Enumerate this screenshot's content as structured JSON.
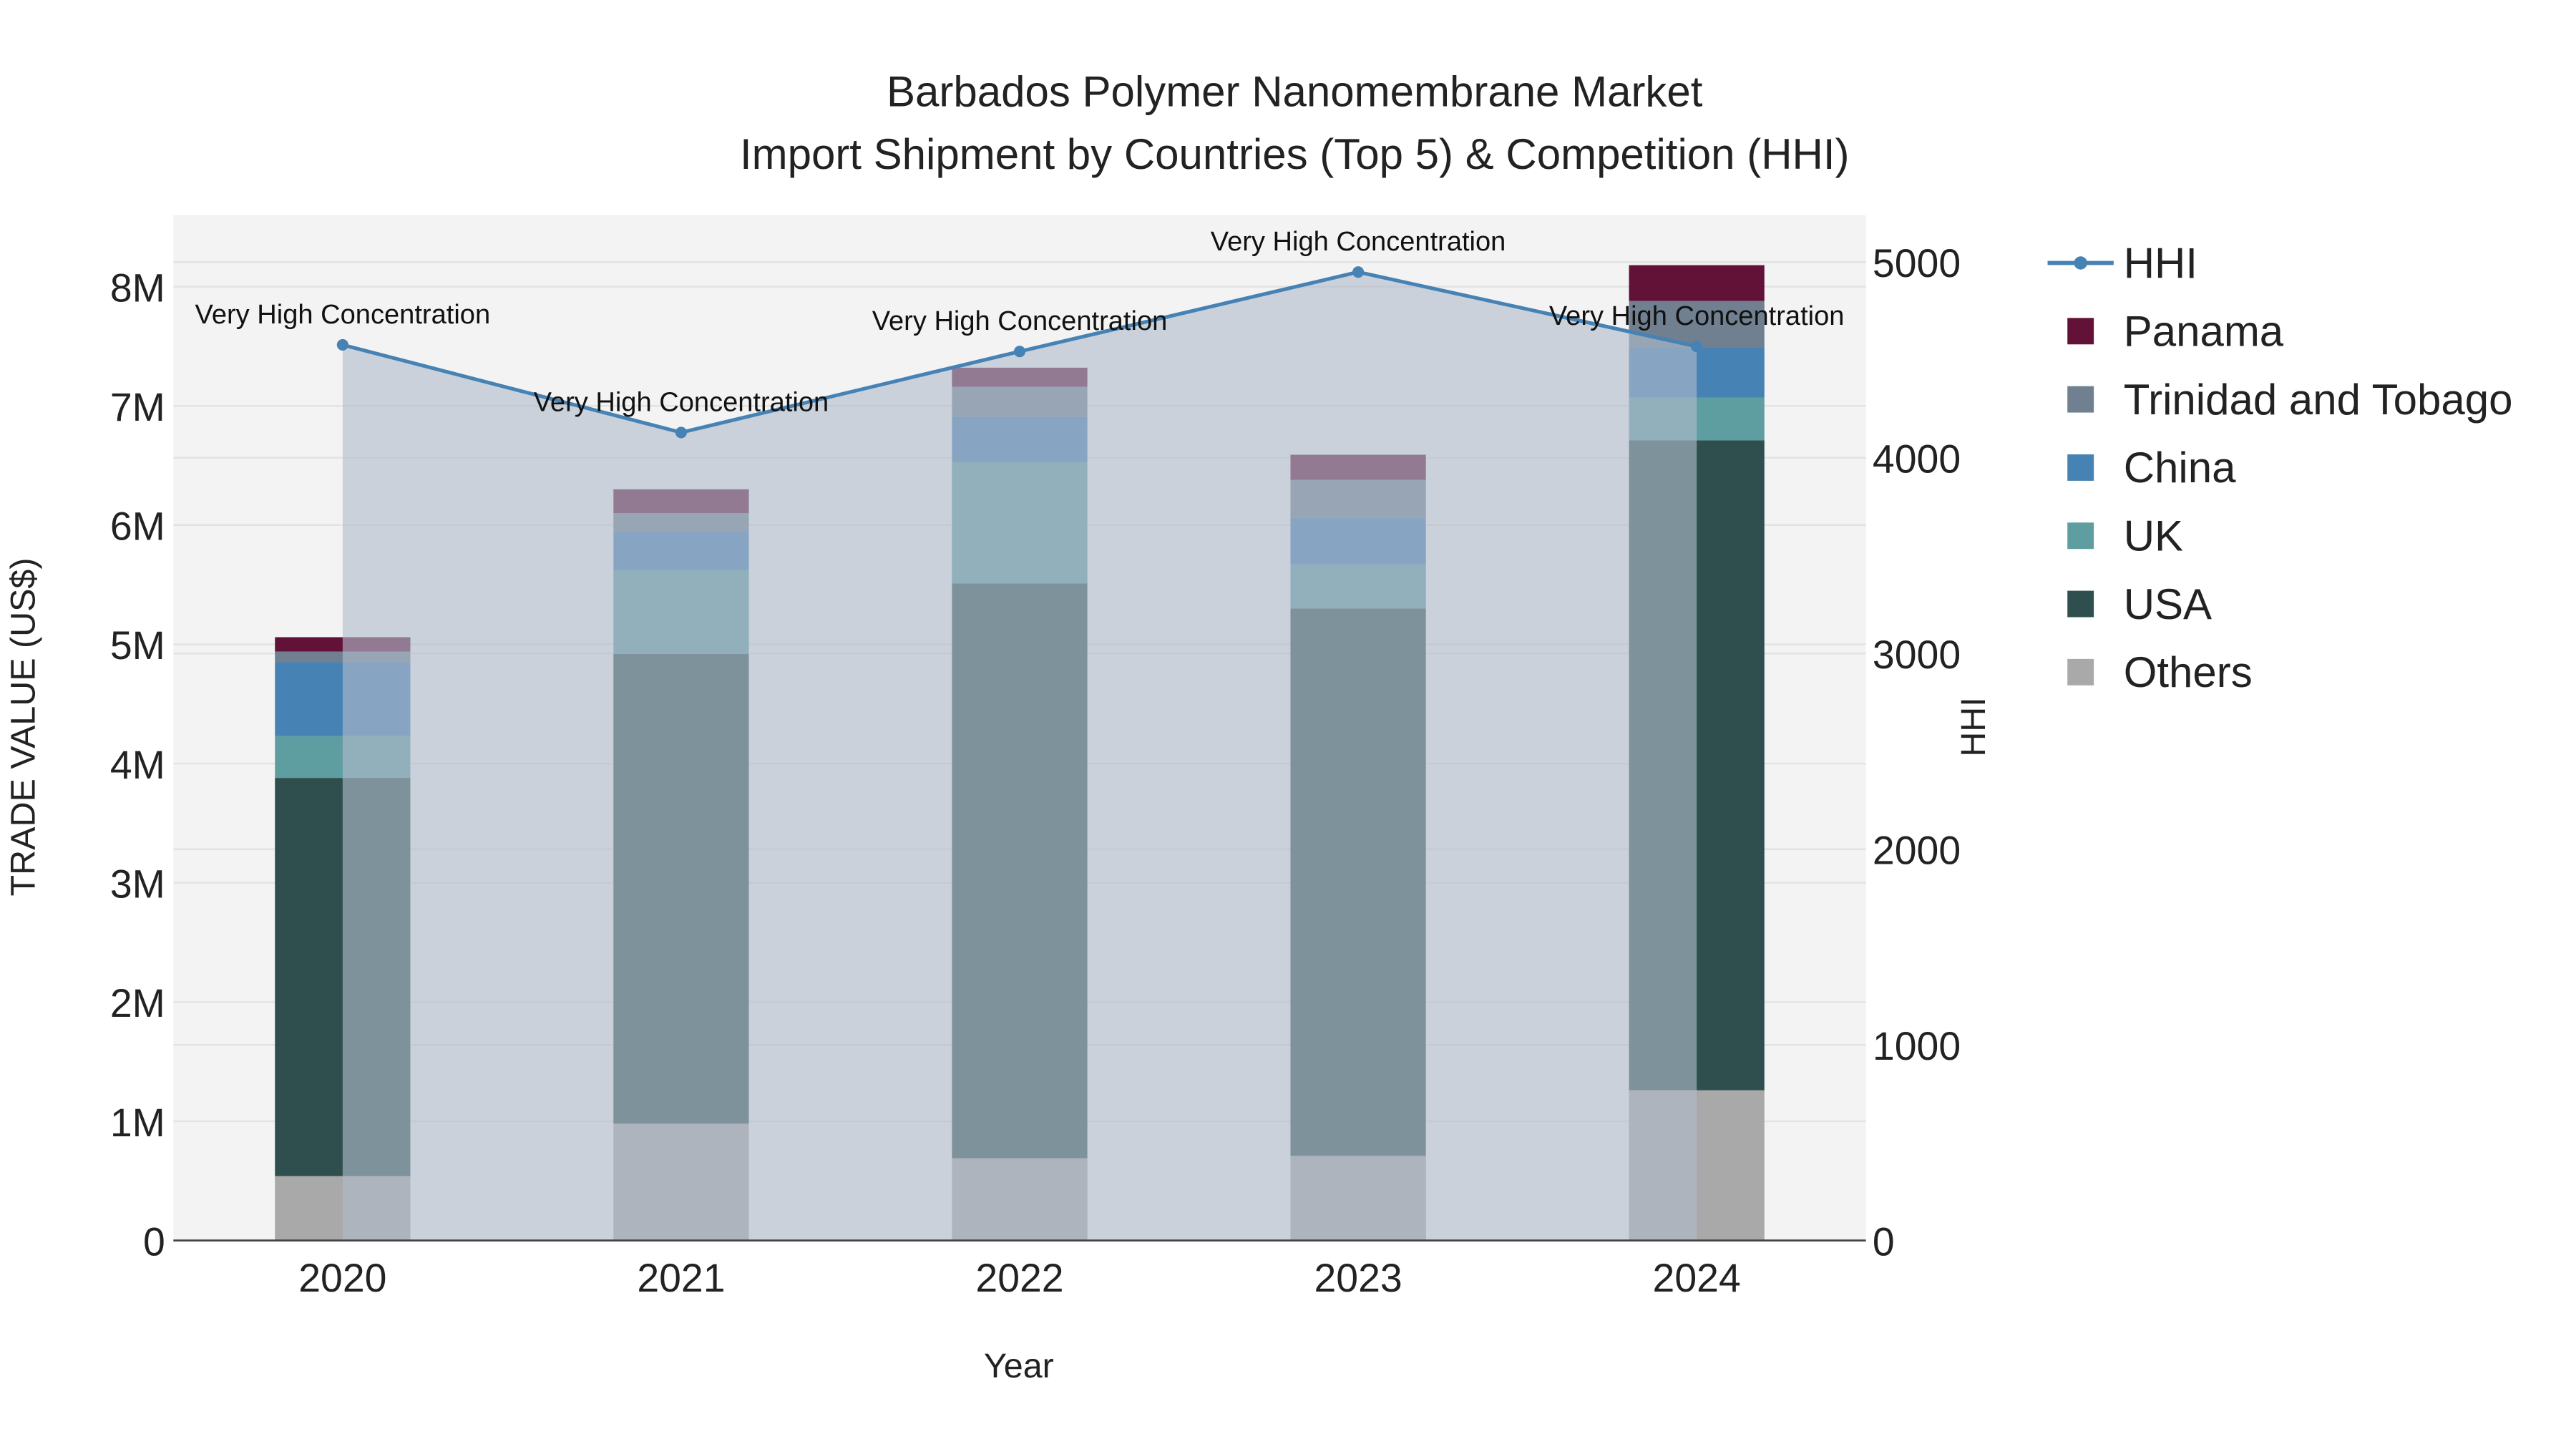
{
  "chart_data": {
    "type": "bar",
    "title_line1": "Barbados Polymer Nanomembrane Market",
    "title_line2": "Import Shipment by Countries (Top 5) & Competition (HHI)",
    "xlabel": "Year",
    "ylabel": "TRADE VALUE (US$)",
    "y2label": "HHI",
    "categories": [
      "2020",
      "2021",
      "2022",
      "2023",
      "2024"
    ],
    "ylim": [
      0,
      8600000
    ],
    "y2lim": [
      0,
      5240
    ],
    "yticks": [
      {
        "v": 0,
        "label": "0"
      },
      {
        "v": 1000000,
        "label": "1M"
      },
      {
        "v": 2000000,
        "label": "2M"
      },
      {
        "v": 3000000,
        "label": "3M"
      },
      {
        "v": 4000000,
        "label": "4M"
      },
      {
        "v": 5000000,
        "label": "5M"
      },
      {
        "v": 6000000,
        "label": "6M"
      },
      {
        "v": 7000000,
        "label": "7M"
      },
      {
        "v": 8000000,
        "label": "8M"
      }
    ],
    "y2ticks": [
      {
        "v": 0,
        "label": "0"
      },
      {
        "v": 1000,
        "label": "1000"
      },
      {
        "v": 2000,
        "label": "2000"
      },
      {
        "v": 3000,
        "label": "3000"
      },
      {
        "v": 4000,
        "label": "4000"
      },
      {
        "v": 5000,
        "label": "5000"
      }
    ],
    "series": [
      {
        "name": "Others",
        "color": "#a9a9a9",
        "values": [
          540000,
          980000,
          690000,
          710000,
          1260000
        ]
      },
      {
        "name": "USA",
        "color": "#2f4f4f",
        "values": [
          3340000,
          3940000,
          4820000,
          4590000,
          5450000
        ]
      },
      {
        "name": "UK",
        "color": "#5f9ea0",
        "values": [
          350000,
          700000,
          1020000,
          370000,
          360000
        ]
      },
      {
        "name": "China",
        "color": "#4682b4",
        "values": [
          620000,
          330000,
          380000,
          390000,
          420000
        ]
      },
      {
        "name": "Trinidad and Tobago",
        "color": "#708090",
        "values": [
          90000,
          150000,
          250000,
          320000,
          390000
        ]
      },
      {
        "name": "Panama",
        "color": "#611236",
        "values": [
          120000,
          200000,
          160000,
          210000,
          300000
        ]
      }
    ],
    "hhi": {
      "name": "HHI",
      "color": "#4682b4",
      "values": [
        4577,
        4129,
        4543,
        4949,
        4569
      ],
      "annotations": [
        "Very High Concentration",
        "Very High Concentration",
        "Very High Concentration",
        "Very High Concentration",
        "Very High Concentration"
      ]
    },
    "legend_order": [
      "HHI",
      "Panama",
      "Trinidad and Tobago",
      "China",
      "UK",
      "USA",
      "Others"
    ],
    "legend_position": "right",
    "grid": true
  }
}
